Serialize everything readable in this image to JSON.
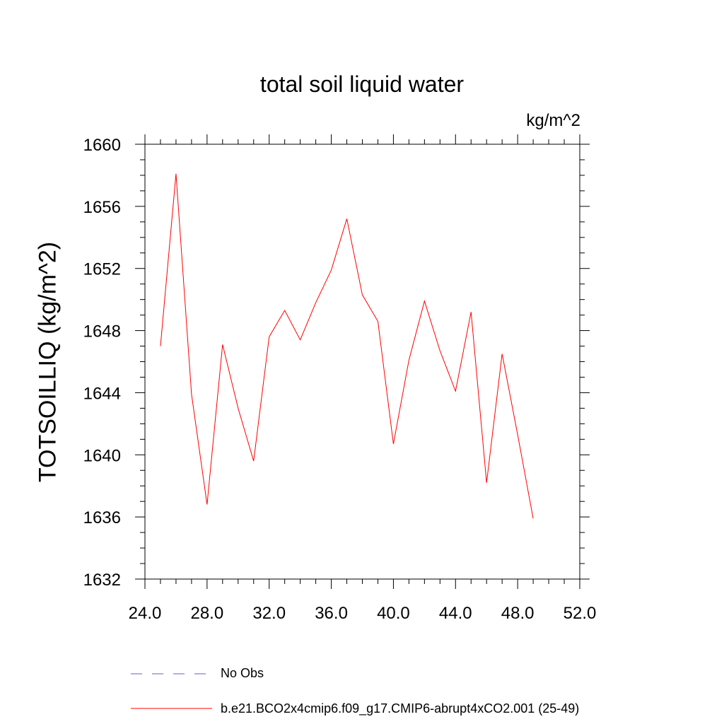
{
  "chart_data": {
    "type": "line",
    "title": "total soil liquid water",
    "units_label": "kg/m^2",
    "ylabel": "TOTSOILLIQ  (kg/m^2)",
    "xlabel": "",
    "xlim": [
      24.0,
      52.0
    ],
    "ylim": [
      1632,
      1660
    ],
    "x_ticks": [
      24.0,
      28.0,
      32.0,
      36.0,
      40.0,
      44.0,
      48.0,
      52.0
    ],
    "x_tick_labels": [
      "24.0",
      "28.0",
      "32.0",
      "36.0",
      "40.0",
      "44.0",
      "48.0",
      "52.0"
    ],
    "y_ticks": [
      1632,
      1636,
      1640,
      1644,
      1648,
      1652,
      1656,
      1660
    ],
    "y_tick_labels": [
      "1632",
      "1636",
      "1640",
      "1644",
      "1648",
      "1652",
      "1656",
      "1660"
    ],
    "grid": false,
    "legend_position": "bottom",
    "series": [
      {
        "name": "No Obs",
        "color": "#6a5acd",
        "style": "dashed",
        "x": [],
        "values": []
      },
      {
        "name": "b.e21.BCO2x4cmip6.f09_g17.CMIP6-abrupt4xCO2.001 (25-49)",
        "color": "#ff0000",
        "style": "solid",
        "x": [
          25,
          26,
          27,
          28,
          29,
          30,
          31,
          32,
          33,
          34,
          35,
          36,
          37,
          38,
          39,
          40,
          41,
          42,
          43,
          44,
          45,
          46,
          47,
          48,
          49
        ],
        "values": [
          1647.0,
          1658.1,
          1643.9,
          1636.8,
          1647.1,
          1643.0,
          1639.6,
          1647.6,
          1649.3,
          1647.4,
          1649.8,
          1651.9,
          1655.2,
          1650.3,
          1648.6,
          1640.7,
          1646.1,
          1649.9,
          1646.7,
          1644.1,
          1649.2,
          1638.2,
          1646.5,
          1641.3,
          1635.9
        ]
      }
    ]
  }
}
